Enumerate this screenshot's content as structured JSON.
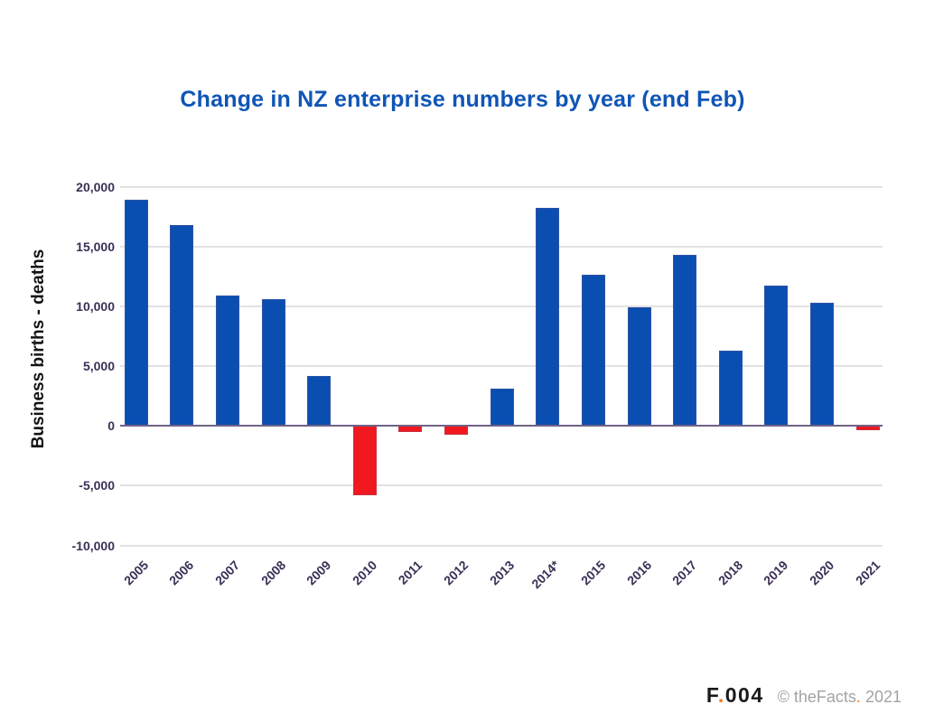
{
  "title": "Change in NZ enterprise numbers by year (end Feb)",
  "colors": {
    "title_blue": "#0f55b6",
    "bar_positive": "#0b4eb2",
    "bar_negative": "#f1181f",
    "tick_text": "#3b2f56",
    "grid": "#e2e2e2",
    "zero_line": "#6f6287",
    "brand_black": "#1a1a1a",
    "brand_orange": "#f47b20",
    "copyright_gray": "#a3a3a3"
  },
  "chart_data": {
    "type": "bar",
    "title": "Change in NZ enterprise numbers by year (end Feb)",
    "xlabel": "",
    "ylabel": "Business births - deaths",
    "ylim": [
      -10000,
      20000
    ],
    "grid": "horizontal",
    "legend": false,
    "yticks": [
      {
        "value": 20000,
        "label": "20,000"
      },
      {
        "value": 15000,
        "label": "15,000"
      },
      {
        "value": 10000,
        "label": "10,000"
      },
      {
        "value": 5000,
        "label": "5,000"
      },
      {
        "value": 0,
        "label": "0"
      },
      {
        "value": -5000,
        "label": "-5,000"
      },
      {
        "value": -10000,
        "label": "-10,000"
      }
    ],
    "categories": [
      "2005",
      "2006",
      "2007",
      "2008",
      "2009",
      "2010",
      "2011",
      "2012",
      "2013",
      "2014*",
      "2015",
      "2016",
      "2017",
      "2018",
      "2019",
      "2020",
      "2021"
    ],
    "values": [
      18900,
      16800,
      10900,
      10600,
      4200,
      -5800,
      -500,
      -750,
      3100,
      18200,
      12600,
      9900,
      14300,
      6300,
      11700,
      10300,
      -400
    ]
  },
  "footer": {
    "brand_f": "F",
    "brand_dot": ".",
    "brand_num": "004",
    "copyright_pre": "© theFacts",
    "copyright_dot": ".",
    "copyright_year": "2021"
  }
}
